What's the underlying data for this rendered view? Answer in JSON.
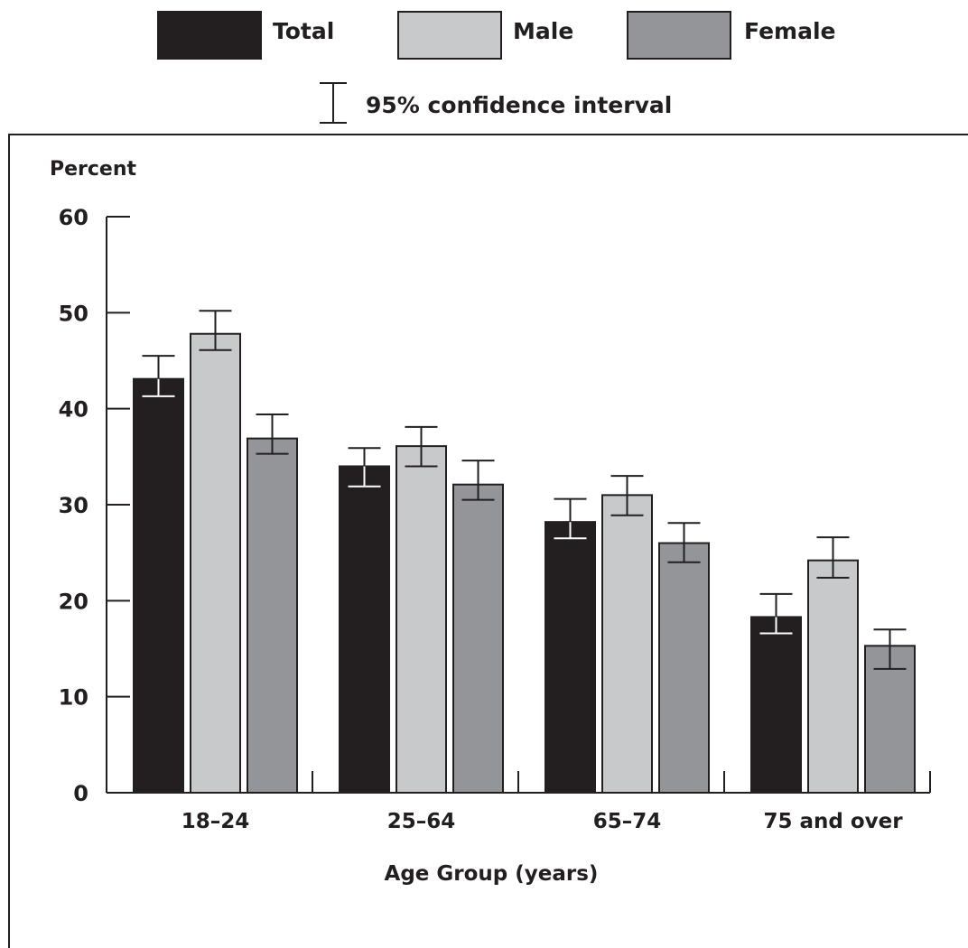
{
  "chart_data": {
    "type": "bar",
    "title": "",
    "ylabel": "Percent",
    "xlabel": "Age Group (years)",
    "ylim": [
      0,
      60
    ],
    "yticks": [
      0,
      10,
      20,
      30,
      40,
      50,
      60
    ],
    "categories": [
      "18–24",
      "25–64",
      "65–74",
      "75 and over"
    ],
    "series": [
      {
        "name": "Total",
        "color": "#231f20",
        "whisker": "#ffffff",
        "values": [
          43.1,
          34.0,
          28.2,
          18.3
        ],
        "ci_low": [
          41.3,
          31.9,
          26.5,
          16.6
        ],
        "ci_high": [
          45.5,
          35.9,
          30.6,
          20.7
        ]
      },
      {
        "name": "Male",
        "color": "#c8c9cb",
        "whisker": "#231f20",
        "values": [
          47.8,
          36.1,
          31.0,
          24.2
        ],
        "ci_low": [
          46.1,
          34.0,
          28.9,
          22.4
        ],
        "ci_high": [
          50.2,
          38.1,
          33.0,
          26.6
        ]
      },
      {
        "name": "Female",
        "color": "#939598",
        "whisker": "#231f20",
        "values": [
          36.9,
          32.1,
          26.0,
          15.3
        ],
        "ci_low": [
          35.3,
          30.5,
          24.0,
          12.9
        ],
        "ci_high": [
          39.4,
          34.6,
          28.1,
          17.0
        ]
      }
    ],
    "legend": {
      "ci_label": "95% confidence interval",
      "placement": "top"
    },
    "grid": false
  }
}
